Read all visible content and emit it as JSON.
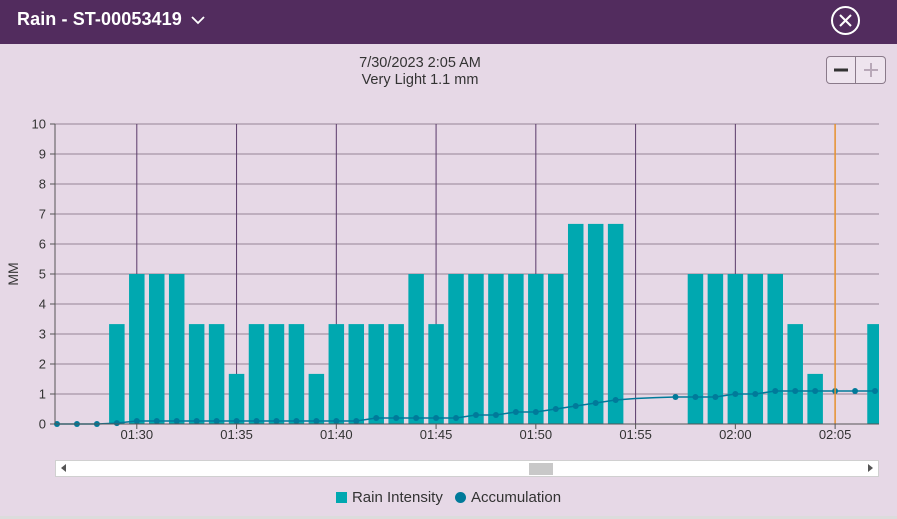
{
  "header": {
    "title": "Rain - ST-00053419"
  },
  "caption": {
    "datetime": "7/30/2023 2:05 AM",
    "summary": "Very Light 1.1 mm"
  },
  "legend": {
    "intensity_label": "Rain Intensity",
    "accumulation_label": "Accumulation"
  },
  "colors": {
    "header_bg": "#522c5e",
    "bar": "#00a8b0",
    "accumulation": "#007a9a",
    "cursor": "#e6902e",
    "plot_bg": "#e6d8e6"
  },
  "chart_data": {
    "type": "bar",
    "ylabel": "MM",
    "ylim": [
      0,
      10
    ],
    "yticks": [
      0,
      1,
      2,
      3,
      4,
      5,
      6,
      7,
      8,
      9,
      10
    ],
    "x_tick_labels": [
      "01:30",
      "01:35",
      "01:40",
      "01:45",
      "01:50",
      "01:55",
      "02:00",
      "02:05"
    ],
    "x_tick_minutes": [
      90,
      95,
      100,
      105,
      110,
      115,
      120,
      125
    ],
    "x_range_minutes": [
      85.9,
      127.2
    ],
    "cursor_minute": 125,
    "series": [
      {
        "name": "Rain Intensity",
        "type": "bar",
        "x_minutes": [
          87,
          88,
          89,
          90,
          91,
          92,
          93,
          94,
          95,
          96,
          97,
          98,
          99,
          100,
          101,
          102,
          103,
          104,
          105,
          106,
          107,
          108,
          109,
          110,
          111,
          112,
          113,
          114,
          115,
          116,
          117,
          118,
          119,
          120,
          121,
          122,
          123,
          124,
          125,
          126,
          127
        ],
        "values": [
          0,
          0,
          3.33,
          5,
          5,
          5,
          3.33,
          3.33,
          1.67,
          3.33,
          3.33,
          3.33,
          1.67,
          3.33,
          3.33,
          3.33,
          3.33,
          5,
          3.33,
          5,
          5,
          5,
          5,
          5,
          5,
          6.67,
          6.67,
          6.67,
          0,
          0,
          0,
          5,
          5,
          5,
          5,
          5,
          3.33,
          1.67,
          0,
          0,
          3.33
        ]
      },
      {
        "name": "Accumulation",
        "type": "line",
        "x_minutes": [
          86,
          87,
          88,
          89,
          90,
          91,
          92,
          93,
          94,
          95,
          96,
          97,
          98,
          99,
          100,
          101,
          102,
          103,
          104,
          105,
          106,
          107,
          108,
          109,
          110,
          111,
          112,
          113,
          114,
          115,
          116,
          117,
          118,
          119,
          120,
          121,
          122,
          123,
          124,
          125,
          126,
          127
        ],
        "values": [
          0,
          0,
          0,
          0.03,
          0.1,
          0.1,
          0.1,
          0.1,
          0.1,
          0.1,
          0.1,
          0.1,
          0.1,
          0.1,
          0.1,
          0.1,
          0.2,
          0.2,
          0.2,
          0.2,
          0.2,
          0.3,
          0.3,
          0.4,
          0.4,
          0.5,
          0.6,
          0.7,
          0.8,
          0.85,
          0.88,
          0.9,
          0.9,
          0.9,
          1.0,
          1.0,
          1.1,
          1.1,
          1.1,
          1.1,
          1.1,
          1.1
        ]
      }
    ]
  }
}
